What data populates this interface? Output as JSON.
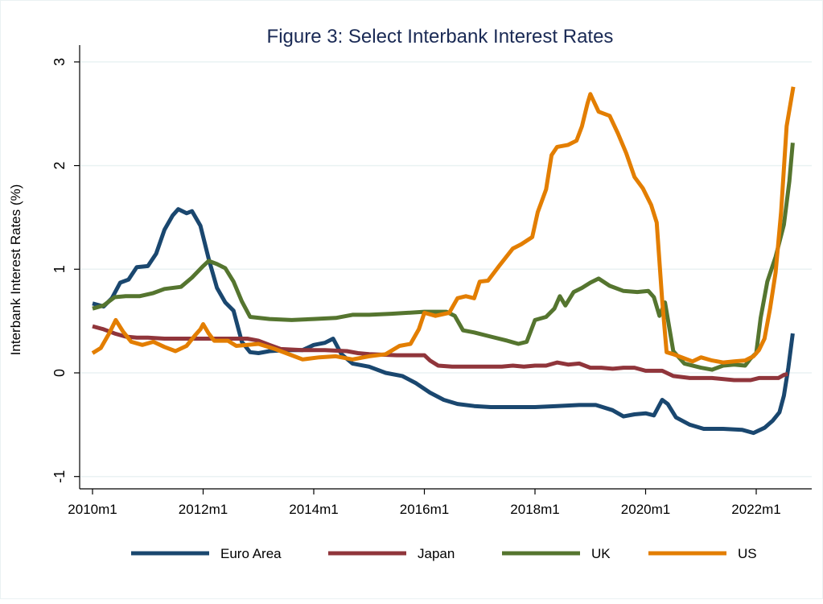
{
  "chart_data": {
    "type": "line",
    "title": "Figure 3: Select Interbank Interest Rates",
    "xlabel": "",
    "ylabel": "Interbank Interest Rates (%)",
    "ylim": [
      -1.1,
      3.1
    ],
    "xlim": [
      2009.8,
      2022.85
    ],
    "y_ticks": [
      -1,
      0,
      1,
      2,
      3
    ],
    "y_tick_labels": [
      "-1",
      "0",
      "1",
      "2",
      "3"
    ],
    "x_ticks": [
      2010,
      2012,
      2014,
      2016,
      2018,
      2020,
      2022
    ],
    "x_tick_labels": [
      "2010m1",
      "2012m1",
      "2014m1",
      "2016m1",
      "2018m1",
      "2020m1",
      "2022m1"
    ],
    "grid": true,
    "legend_position": "bottom",
    "series": [
      {
        "name": "Euro Area",
        "color": "#1a476f",
        "points": [
          [
            2010.0,
            0.67
          ],
          [
            2010.2,
            0.64
          ],
          [
            2010.35,
            0.72
          ],
          [
            2010.5,
            0.87
          ],
          [
            2010.65,
            0.9
          ],
          [
            2010.8,
            1.02
          ],
          [
            2011.0,
            1.03
          ],
          [
            2011.15,
            1.15
          ],
          [
            2011.3,
            1.38
          ],
          [
            2011.45,
            1.52
          ],
          [
            2011.55,
            1.58
          ],
          [
            2011.7,
            1.54
          ],
          [
            2011.8,
            1.56
          ],
          [
            2011.95,
            1.42
          ],
          [
            2012.1,
            1.1
          ],
          [
            2012.25,
            0.82
          ],
          [
            2012.4,
            0.68
          ],
          [
            2012.55,
            0.6
          ],
          [
            2012.7,
            0.3
          ],
          [
            2012.85,
            0.2
          ],
          [
            2013.0,
            0.19
          ],
          [
            2013.2,
            0.21
          ],
          [
            2013.5,
            0.22
          ],
          [
            2013.8,
            0.22
          ],
          [
            2014.0,
            0.27
          ],
          [
            2014.2,
            0.29
          ],
          [
            2014.35,
            0.33
          ],
          [
            2014.5,
            0.18
          ],
          [
            2014.7,
            0.09
          ],
          [
            2015.0,
            0.06
          ],
          [
            2015.3,
            0.0
          ],
          [
            2015.6,
            -0.03
          ],
          [
            2015.85,
            -0.1
          ],
          [
            2016.1,
            -0.19
          ],
          [
            2016.35,
            -0.26
          ],
          [
            2016.6,
            -0.3
          ],
          [
            2016.9,
            -0.32
          ],
          [
            2017.2,
            -0.33
          ],
          [
            2017.6,
            -0.33
          ],
          [
            2018.0,
            -0.33
          ],
          [
            2018.4,
            -0.32
          ],
          [
            2018.8,
            -0.31
          ],
          [
            2019.1,
            -0.31
          ],
          [
            2019.4,
            -0.36
          ],
          [
            2019.6,
            -0.42
          ],
          [
            2019.8,
            -0.4
          ],
          [
            2020.0,
            -0.39
          ],
          [
            2020.15,
            -0.41
          ],
          [
            2020.3,
            -0.26
          ],
          [
            2020.4,
            -0.3
          ],
          [
            2020.55,
            -0.43
          ],
          [
            2020.8,
            -0.5
          ],
          [
            2021.05,
            -0.54
          ],
          [
            2021.4,
            -0.54
          ],
          [
            2021.75,
            -0.55
          ],
          [
            2021.95,
            -0.58
          ],
          [
            2022.15,
            -0.53
          ],
          [
            2022.3,
            -0.46
          ],
          [
            2022.42,
            -0.38
          ],
          [
            2022.5,
            -0.22
          ],
          [
            2022.58,
            0.05
          ],
          [
            2022.66,
            0.38
          ]
        ]
      },
      {
        "name": "Japan",
        "color": "#90353b",
        "points": [
          [
            2010.0,
            0.45
          ],
          [
            2010.2,
            0.42
          ],
          [
            2010.4,
            0.38
          ],
          [
            2010.6,
            0.35
          ],
          [
            2010.8,
            0.34
          ],
          [
            2011.0,
            0.34
          ],
          [
            2011.3,
            0.33
          ],
          [
            2011.6,
            0.33
          ],
          [
            2012.0,
            0.33
          ],
          [
            2012.4,
            0.33
          ],
          [
            2012.8,
            0.33
          ],
          [
            2013.0,
            0.31
          ],
          [
            2013.2,
            0.27
          ],
          [
            2013.4,
            0.23
          ],
          [
            2013.8,
            0.22
          ],
          [
            2014.2,
            0.22
          ],
          [
            2014.6,
            0.21
          ],
          [
            2014.8,
            0.19
          ],
          [
            2015.0,
            0.18
          ],
          [
            2015.5,
            0.17
          ],
          [
            2016.0,
            0.17
          ],
          [
            2016.1,
            0.12
          ],
          [
            2016.25,
            0.07
          ],
          [
            2016.5,
            0.06
          ],
          [
            2017.0,
            0.06
          ],
          [
            2017.4,
            0.06
          ],
          [
            2017.6,
            0.07
          ],
          [
            2017.8,
            0.06
          ],
          [
            2018.0,
            0.07
          ],
          [
            2018.2,
            0.07
          ],
          [
            2018.4,
            0.1
          ],
          [
            2018.6,
            0.08
          ],
          [
            2018.8,
            0.09
          ],
          [
            2019.0,
            0.05
          ],
          [
            2019.2,
            0.05
          ],
          [
            2019.4,
            0.04
          ],
          [
            2019.6,
            0.05
          ],
          [
            2019.8,
            0.05
          ],
          [
            2020.0,
            0.02
          ],
          [
            2020.3,
            0.02
          ],
          [
            2020.5,
            -0.03
          ],
          [
            2020.8,
            -0.05
          ],
          [
            2021.2,
            -0.05
          ],
          [
            2021.6,
            -0.07
          ],
          [
            2021.9,
            -0.07
          ],
          [
            2022.05,
            -0.05
          ],
          [
            2022.4,
            -0.05
          ],
          [
            2022.5,
            -0.02
          ],
          [
            2022.57,
            -0.01
          ]
        ]
      },
      {
        "name": "UK",
        "color": "#55752f",
        "points": [
          [
            2010.0,
            0.62
          ],
          [
            2010.2,
            0.65
          ],
          [
            2010.4,
            0.73
          ],
          [
            2010.6,
            0.74
          ],
          [
            2010.85,
            0.74
          ],
          [
            2011.1,
            0.77
          ],
          [
            2011.3,
            0.81
          ],
          [
            2011.6,
            0.83
          ],
          [
            2011.8,
            0.92
          ],
          [
            2012.0,
            1.03
          ],
          [
            2012.1,
            1.08
          ],
          [
            2012.25,
            1.05
          ],
          [
            2012.4,
            1.01
          ],
          [
            2012.55,
            0.88
          ],
          [
            2012.7,
            0.69
          ],
          [
            2012.85,
            0.54
          ],
          [
            2013.2,
            0.52
          ],
          [
            2013.6,
            0.51
          ],
          [
            2014.0,
            0.52
          ],
          [
            2014.4,
            0.53
          ],
          [
            2014.7,
            0.56
          ],
          [
            2015.0,
            0.56
          ],
          [
            2015.4,
            0.57
          ],
          [
            2015.7,
            0.58
          ],
          [
            2016.0,
            0.59
          ],
          [
            2016.4,
            0.59
          ],
          [
            2016.55,
            0.55
          ],
          [
            2016.7,
            0.41
          ],
          [
            2016.9,
            0.39
          ],
          [
            2017.2,
            0.35
          ],
          [
            2017.5,
            0.31
          ],
          [
            2017.7,
            0.28
          ],
          [
            2017.85,
            0.3
          ],
          [
            2018.0,
            0.51
          ],
          [
            2018.2,
            0.54
          ],
          [
            2018.35,
            0.62
          ],
          [
            2018.45,
            0.74
          ],
          [
            2018.55,
            0.65
          ],
          [
            2018.7,
            0.78
          ],
          [
            2018.85,
            0.82
          ],
          [
            2019.0,
            0.87
          ],
          [
            2019.15,
            0.91
          ],
          [
            2019.35,
            0.84
          ],
          [
            2019.6,
            0.79
          ],
          [
            2019.85,
            0.78
          ],
          [
            2020.05,
            0.79
          ],
          [
            2020.15,
            0.73
          ],
          [
            2020.25,
            0.55
          ],
          [
            2020.35,
            0.68
          ],
          [
            2020.5,
            0.21
          ],
          [
            2020.7,
            0.09
          ],
          [
            2021.0,
            0.05
          ],
          [
            2021.2,
            0.03
          ],
          [
            2021.4,
            0.07
          ],
          [
            2021.6,
            0.08
          ],
          [
            2021.8,
            0.07
          ],
          [
            2021.9,
            0.14
          ],
          [
            2022.0,
            0.19
          ],
          [
            2022.08,
            0.53
          ],
          [
            2022.2,
            0.88
          ],
          [
            2022.35,
            1.12
          ],
          [
            2022.5,
            1.43
          ],
          [
            2022.6,
            1.85
          ],
          [
            2022.66,
            2.22
          ]
        ]
      },
      {
        "name": "US",
        "color": "#e37e00",
        "points": [
          [
            2010.0,
            0.19
          ],
          [
            2010.15,
            0.24
          ],
          [
            2010.3,
            0.38
          ],
          [
            2010.42,
            0.51
          ],
          [
            2010.55,
            0.4
          ],
          [
            2010.7,
            0.3
          ],
          [
            2010.9,
            0.27
          ],
          [
            2011.1,
            0.3
          ],
          [
            2011.3,
            0.25
          ],
          [
            2011.5,
            0.21
          ],
          [
            2011.7,
            0.26
          ],
          [
            2011.85,
            0.36
          ],
          [
            2011.95,
            0.42
          ],
          [
            2012.0,
            0.47
          ],
          [
            2012.1,
            0.38
          ],
          [
            2012.2,
            0.31
          ],
          [
            2012.45,
            0.31
          ],
          [
            2012.6,
            0.26
          ],
          [
            2012.8,
            0.27
          ],
          [
            2013.0,
            0.28
          ],
          [
            2013.3,
            0.23
          ],
          [
            2013.6,
            0.17
          ],
          [
            2013.8,
            0.13
          ],
          [
            2014.1,
            0.15
          ],
          [
            2014.4,
            0.16
          ],
          [
            2014.7,
            0.13
          ],
          [
            2015.0,
            0.16
          ],
          [
            2015.3,
            0.18
          ],
          [
            2015.55,
            0.26
          ],
          [
            2015.75,
            0.28
          ],
          [
            2015.9,
            0.42
          ],
          [
            2016.0,
            0.58
          ],
          [
            2016.2,
            0.55
          ],
          [
            2016.45,
            0.58
          ],
          [
            2016.6,
            0.72
          ],
          [
            2016.75,
            0.74
          ],
          [
            2016.9,
            0.72
          ],
          [
            2017.0,
            0.88
          ],
          [
            2017.15,
            0.89
          ],
          [
            2017.35,
            1.03
          ],
          [
            2017.6,
            1.2
          ],
          [
            2017.75,
            1.24
          ],
          [
            2017.95,
            1.31
          ],
          [
            2018.05,
            1.55
          ],
          [
            2018.2,
            1.77
          ],
          [
            2018.3,
            2.1
          ],
          [
            2018.4,
            2.18
          ],
          [
            2018.6,
            2.2
          ],
          [
            2018.75,
            2.24
          ],
          [
            2018.85,
            2.38
          ],
          [
            2018.95,
            2.6
          ],
          [
            2019.0,
            2.69
          ],
          [
            2019.15,
            2.52
          ],
          [
            2019.35,
            2.48
          ],
          [
            2019.5,
            2.31
          ],
          [
            2019.65,
            2.12
          ],
          [
            2019.8,
            1.89
          ],
          [
            2019.95,
            1.78
          ],
          [
            2020.1,
            1.62
          ],
          [
            2020.2,
            1.45
          ],
          [
            2020.3,
            0.7
          ],
          [
            2020.38,
            0.2
          ],
          [
            2020.5,
            0.18
          ],
          [
            2020.7,
            0.14
          ],
          [
            2020.85,
            0.11
          ],
          [
            2021.0,
            0.15
          ],
          [
            2021.2,
            0.12
          ],
          [
            2021.4,
            0.1
          ],
          [
            2021.6,
            0.11
          ],
          [
            2021.8,
            0.12
          ],
          [
            2021.95,
            0.16
          ],
          [
            2022.05,
            0.22
          ],
          [
            2022.15,
            0.33
          ],
          [
            2022.25,
            0.62
          ],
          [
            2022.35,
            0.97
          ],
          [
            2022.45,
            1.55
          ],
          [
            2022.55,
            2.38
          ],
          [
            2022.67,
            2.76
          ]
        ]
      }
    ]
  }
}
